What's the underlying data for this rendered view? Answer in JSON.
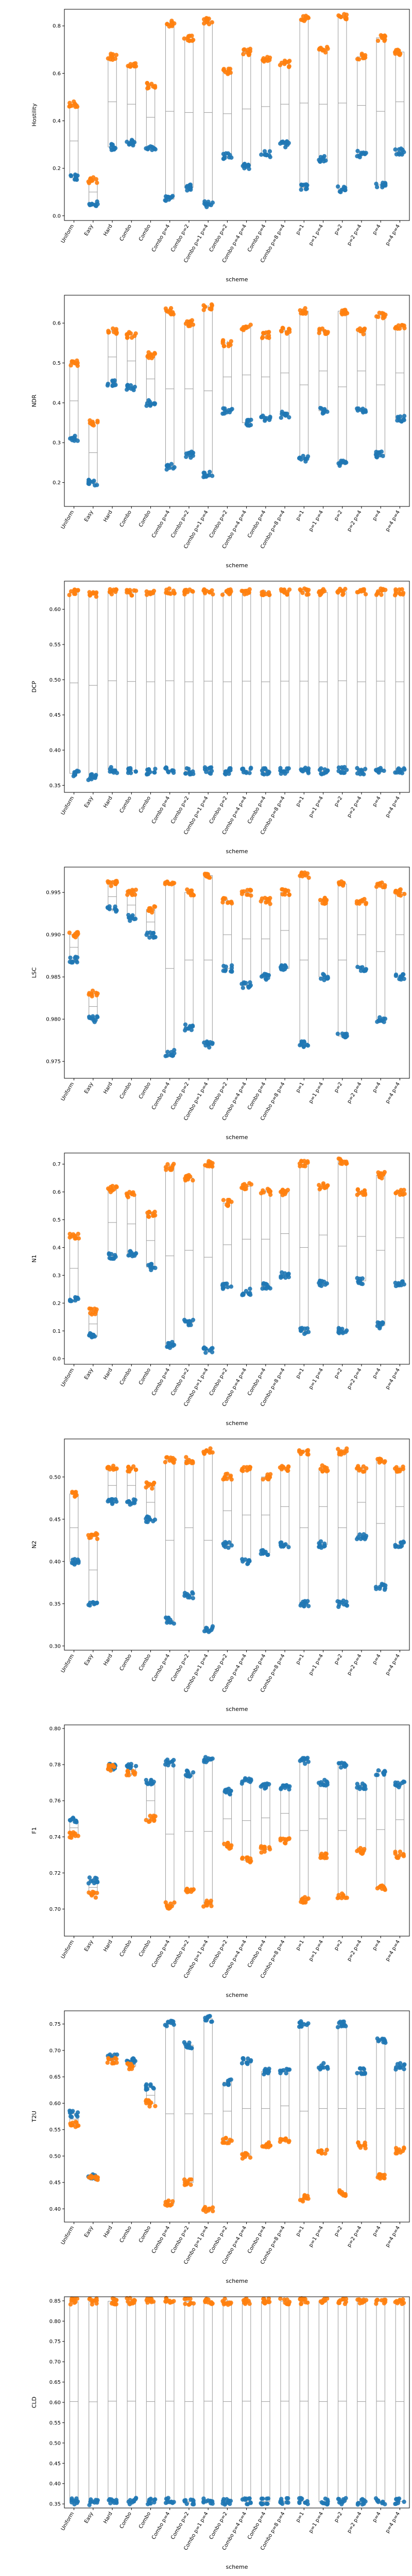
{
  "figure": {
    "x_axis_label": "scheme",
    "colors": {
      "series_a": "#1f77b4",
      "series_b": "#ff7f0e",
      "box_edge": "#9a9a9a"
    }
  },
  "chart_data": [
    {
      "type": "box-strip",
      "ylabel": "Hostility",
      "xlabel": "scheme",
      "ylim": [
        -0.02,
        0.87
      ],
      "yticks": [
        "0.0",
        "0.2",
        "0.4",
        "0.6",
        "0.8"
      ],
      "categories": [
        "Uniform",
        "Easy",
        "Hard",
        "Combo",
        "Combo",
        "Combo p=4",
        "Combo p=2",
        "Combo p=1 p=4",
        "Combo p=2",
        "Combo p=4 p=4",
        "Combo p=4",
        "Combo p=8 p=4",
        "p=1",
        "p=1 p=4",
        "p=2",
        "p=2 p=4",
        "p=4",
        "p=4 p=4"
      ],
      "series": [
        {
          "color": "#1f77b4",
          "values": [
            0.16,
            0.05,
            0.29,
            0.31,
            0.28,
            0.07,
            0.12,
            0.05,
            0.25,
            0.21,
            0.26,
            0.3,
            0.12,
            0.24,
            0.11,
            0.26,
            0.13,
            0.27
          ]
        },
        {
          "color": "#ff7f0e",
          "values": [
            0.47,
            0.15,
            0.67,
            0.63,
            0.55,
            0.81,
            0.75,
            0.82,
            0.61,
            0.69,
            0.66,
            0.64,
            0.83,
            0.7,
            0.84,
            0.67,
            0.75,
            0.69
          ]
        }
      ]
    },
    {
      "type": "box-strip",
      "ylabel": "NDR",
      "xlabel": "scheme",
      "ylim": [
        0.14,
        0.67
      ],
      "yticks": [
        "0.2",
        "0.3",
        "0.4",
        "0.5",
        "0.6"
      ],
      "categories": [
        "Uniform",
        "Easy",
        "Hard",
        "Combo",
        "Combo",
        "Combo p=4",
        "Combo p=2",
        "Combo p=1 p=4",
        "Combo p=2",
        "Combo p=4 p=4",
        "Combo p=4",
        "Combo p=8 p=4",
        "p=1",
        "p=1 p=4",
        "p=2",
        "p=2 p=4",
        "p=4",
        "p=4 p=4"
      ],
      "series": [
        {
          "color": "#1f77b4",
          "values": [
            0.31,
            0.2,
            0.45,
            0.44,
            0.4,
            0.24,
            0.27,
            0.22,
            0.38,
            0.35,
            0.36,
            0.37,
            0.26,
            0.38,
            0.25,
            0.38,
            0.27,
            0.36
          ]
        },
        {
          "color": "#ff7f0e",
          "values": [
            0.5,
            0.35,
            0.58,
            0.57,
            0.52,
            0.63,
            0.6,
            0.64,
            0.55,
            0.59,
            0.57,
            0.58,
            0.63,
            0.58,
            0.63,
            0.58,
            0.62,
            0.59
          ]
        }
      ]
    },
    {
      "type": "box-strip",
      "ylabel": "DCP",
      "xlabel": "scheme",
      "ylim": [
        0.34,
        0.64
      ],
      "yticks": [
        "0.35",
        "0.40",
        "0.45",
        "0.50",
        "0.55",
        "0.60"
      ],
      "categories": [
        "Uniform",
        "Easy",
        "Hard",
        "Combo",
        "Combo",
        "Combo p=4",
        "Combo p=2",
        "Combo p=1 p=4",
        "Combo p=2",
        "Combo p=4 p=4",
        "Combo p=4",
        "Combo p=8 p=4",
        "p=1",
        "p=1 p=4",
        "p=2",
        "p=2 p=4",
        "p=4",
        "p=4 p=4"
      ],
      "series": [
        {
          "color": "#1f77b4",
          "values": [
            0.367,
            0.362,
            0.372,
            0.371,
            0.37,
            0.372,
            0.37,
            0.371,
            0.37,
            0.371,
            0.37,
            0.371,
            0.371,
            0.37,
            0.372,
            0.37,
            0.371,
            0.37
          ]
        },
        {
          "color": "#ff7f0e",
          "values": [
            0.624,
            0.622,
            0.625,
            0.624,
            0.624,
            0.625,
            0.624,
            0.625,
            0.624,
            0.625,
            0.624,
            0.625,
            0.625,
            0.624,
            0.625,
            0.624,
            0.625,
            0.624
          ]
        }
      ]
    },
    {
      "type": "box-strip",
      "ylabel": "LSC",
      "xlabel": "scheme",
      "ylim": [
        0.973,
        0.998
      ],
      "yticks": [
        "0.975",
        "0.980",
        "0.985",
        "0.990",
        "0.995"
      ],
      "categories": [
        "Uniform",
        "Easy",
        "Hard",
        "Combo",
        "Combo",
        "Combo p=4",
        "Combo p=2",
        "Combo p=1 p=4",
        "Combo p=2",
        "Combo p=4 p=4",
        "Combo p=4",
        "Combo p=8 p=4",
        "p=1",
        "p=1 p=4",
        "p=2",
        "p=2 p=4",
        "p=4",
        "p=4 p=4"
      ],
      "series": [
        {
          "color": "#1f77b4",
          "values": [
            0.987,
            0.98,
            0.993,
            0.992,
            0.99,
            0.976,
            0.979,
            0.977,
            0.986,
            0.984,
            0.985,
            0.986,
            0.977,
            0.985,
            0.978,
            0.986,
            0.98,
            0.985
          ]
        },
        {
          "color": "#ff7f0e",
          "values": [
            0.99,
            0.983,
            0.996,
            0.995,
            0.993,
            0.996,
            0.995,
            0.997,
            0.994,
            0.995,
            0.994,
            0.995,
            0.997,
            0.994,
            0.996,
            0.994,
            0.996,
            0.995
          ]
        }
      ]
    },
    {
      "type": "box-strip",
      "ylabel": "N1",
      "xlabel": "scheme",
      "ylim": [
        -0.02,
        0.74
      ],
      "yticks": [
        "0.0",
        "0.1",
        "0.2",
        "0.3",
        "0.4",
        "0.5",
        "0.6",
        "0.7"
      ],
      "categories": [
        "Uniform",
        "Easy",
        "Hard",
        "Combo",
        "Combo",
        "Combo p=4",
        "Combo p=2",
        "Combo p=1 p=4",
        "Combo p=2",
        "Combo p=4 p=4",
        "Combo p=4",
        "Combo p=8 p=4",
        "p=1",
        "p=1 p=4",
        "p=2",
        "p=2 p=4",
        "p=4",
        "p=4 p=4"
      ],
      "series": [
        {
          "color": "#1f77b4",
          "values": [
            0.21,
            0.08,
            0.37,
            0.38,
            0.33,
            0.05,
            0.13,
            0.03,
            0.26,
            0.24,
            0.26,
            0.3,
            0.1,
            0.27,
            0.1,
            0.28,
            0.12,
            0.27
          ]
        },
        {
          "color": "#ff7f0e",
          "values": [
            0.44,
            0.17,
            0.61,
            0.59,
            0.52,
            0.69,
            0.65,
            0.7,
            0.56,
            0.62,
            0.6,
            0.6,
            0.7,
            0.62,
            0.71,
            0.6,
            0.66,
            0.6
          ]
        }
      ]
    },
    {
      "type": "box-strip",
      "ylabel": "N2",
      "xlabel": "scheme",
      "ylim": [
        0.295,
        0.545
      ],
      "yticks": [
        "0.30",
        "0.35",
        "0.40",
        "0.45",
        "0.50"
      ],
      "categories": [
        "Uniform",
        "Easy",
        "Hard",
        "Combo",
        "Combo",
        "Combo p=4",
        "Combo p=2",
        "Combo p=1 p=4",
        "Combo p=2",
        "Combo p=4 p=4",
        "Combo p=4",
        "Combo p=8 p=4",
        "p=1",
        "p=1 p=4",
        "p=2",
        "p=2 p=4",
        "p=4",
        "p=4 p=4"
      ],
      "series": [
        {
          "color": "#1f77b4",
          "values": [
            0.4,
            0.35,
            0.47,
            0.47,
            0.45,
            0.33,
            0.36,
            0.32,
            0.42,
            0.4,
            0.41,
            0.42,
            0.35,
            0.42,
            0.35,
            0.43,
            0.37,
            0.42
          ]
        },
        {
          "color": "#ff7f0e",
          "values": [
            0.48,
            0.43,
            0.51,
            0.51,
            0.49,
            0.52,
            0.52,
            0.53,
            0.5,
            0.51,
            0.5,
            0.51,
            0.53,
            0.51,
            0.53,
            0.51,
            0.52,
            0.51
          ]
        }
      ]
    },
    {
      "type": "box-strip",
      "ylabel": "F1",
      "xlabel": "scheme",
      "ylim": [
        0.685,
        0.802
      ],
      "yticks": [
        "0.70",
        "0.72",
        "0.74",
        "0.76",
        "0.78",
        "0.80"
      ],
      "categories": [
        "Uniform",
        "Easy",
        "Hard",
        "Combo",
        "Combo",
        "Combo p=4",
        "Combo p=2",
        "Combo p=1 p=4",
        "Combo p=2",
        "Combo p=4 p=4",
        "Combo p=4",
        "Combo p=8 p=4",
        "p=1",
        "p=1 p=4",
        "p=2",
        "p=2 p=4",
        "p=4",
        "p=4 p=4"
      ],
      "series": [
        {
          "color": "#1f77b4",
          "values": [
            0.749,
            0.716,
            0.779,
            0.779,
            0.77,
            0.781,
            0.775,
            0.783,
            0.765,
            0.771,
            0.768,
            0.768,
            0.782,
            0.77,
            0.78,
            0.768,
            0.776,
            0.769
          ]
        },
        {
          "color": "#ff7f0e",
          "values": [
            0.741,
            0.708,
            0.778,
            0.775,
            0.75,
            0.702,
            0.711,
            0.703,
            0.735,
            0.727,
            0.733,
            0.738,
            0.705,
            0.73,
            0.707,
            0.732,
            0.712,
            0.73
          ]
        }
      ]
    },
    {
      "type": "box-strip",
      "ylabel": "T2U",
      "xlabel": "scheme",
      "ylim": [
        0.375,
        0.775
      ],
      "yticks": [
        "0.40",
        "0.45",
        "0.50",
        "0.55",
        "0.60",
        "0.65",
        "0.70",
        "0.75"
      ],
      "categories": [
        "Uniform",
        "Easy",
        "Hard",
        "Combo",
        "Combo",
        "Combo p=4",
        "Combo p=2",
        "Combo p=1 p=4",
        "Combo p=2",
        "Combo p=4 p=4",
        "Combo p=4",
        "Combo p=8 p=4",
        "p=1",
        "p=1 p=4",
        "p=2",
        "p=2 p=4",
        "p=4",
        "p=4 p=4"
      ],
      "series": [
        {
          "color": "#1f77b4",
          "values": [
            0.58,
            0.46,
            0.69,
            0.68,
            0.63,
            0.75,
            0.71,
            0.76,
            0.64,
            0.68,
            0.66,
            0.66,
            0.75,
            0.67,
            0.75,
            0.66,
            0.72,
            0.67
          ]
        },
        {
          "color": "#ff7f0e",
          "values": [
            0.56,
            0.46,
            0.68,
            0.67,
            0.6,
            0.41,
            0.45,
            0.4,
            0.53,
            0.5,
            0.52,
            0.53,
            0.42,
            0.51,
            0.43,
            0.52,
            0.46,
            0.51
          ]
        }
      ]
    },
    {
      "type": "box-strip",
      "ylabel": "CLD",
      "xlabel": "scheme",
      "ylim": [
        0.34,
        0.86
      ],
      "yticks": [
        "0.35",
        "0.40",
        "0.45",
        "0.50",
        "0.55",
        "0.60",
        "0.65",
        "0.70",
        "0.75",
        "0.80",
        "0.85"
      ],
      "categories": [
        "Uniform",
        "Easy",
        "Hard",
        "Combo",
        "Combo",
        "Combo p=4",
        "Combo p=2",
        "Combo p=1 p=4",
        "Combo p=2",
        "Combo p=4 p=4",
        "Combo p=4",
        "Combo p=8 p=4",
        "p=1",
        "p=1 p=4",
        "p=2",
        "p=2 p=4",
        "p=4",
        "p=4 p=4"
      ],
      "series": [
        {
          "color": "#1f77b4",
          "values": [
            0.356,
            0.355,
            0.357,
            0.357,
            0.356,
            0.357,
            0.356,
            0.357,
            0.356,
            0.357,
            0.356,
            0.357,
            0.357,
            0.356,
            0.357,
            0.356,
            0.357,
            0.356
          ]
        },
        {
          "color": "#ff7f0e",
          "values": [
            0.848,
            0.848,
            0.849,
            0.849,
            0.848,
            0.849,
            0.848,
            0.849,
            0.848,
            0.849,
            0.848,
            0.849,
            0.849,
            0.848,
            0.849,
            0.848,
            0.849,
            0.848
          ]
        }
      ]
    }
  ]
}
